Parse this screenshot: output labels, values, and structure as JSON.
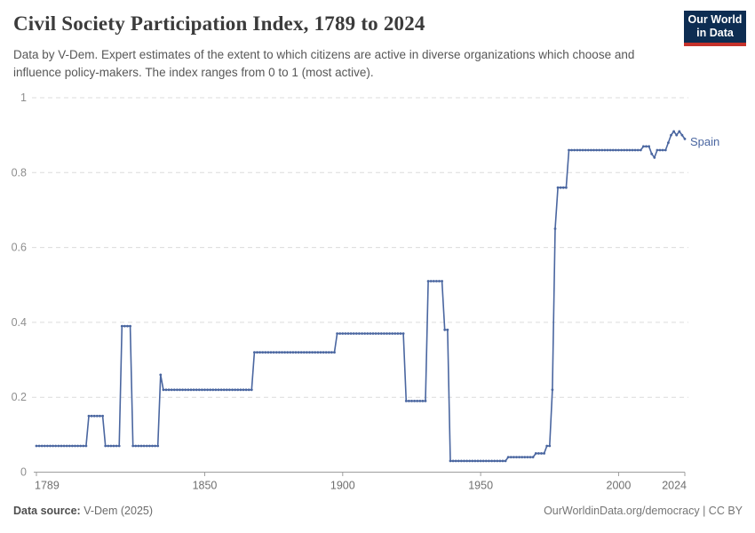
{
  "header": {
    "title": "Civil Society Participation Index, 1789 to 2024",
    "subtitle": "Data by V-Dem. Expert estimates of the extent to which citizens are active in diverse organizations which choose and influence policy-makers. The index ranges from 0 to 1 (most active)."
  },
  "logo": {
    "line1": "Our World",
    "line2": "in Data"
  },
  "footer": {
    "source_label": "Data source:",
    "source_value": " V-Dem (2025)",
    "right_text": "OurWorldinData.org/democracy | CC BY"
  },
  "colors": {
    "line": "#4a66a0",
    "logo_bg": "#0d2d52",
    "logo_stripe": "#c5322b",
    "gridline": "#dcdcdc",
    "axis": "#9e9e9e",
    "y_tick_text": "#8e8e8e",
    "x_tick_text": "#6f6f6f"
  },
  "chart_data": {
    "type": "line",
    "title": "Civil Society Participation Index, 1789 to 2024",
    "xlabel": "",
    "ylabel": "",
    "series_label": "Spain",
    "x_range": [
      1789,
      2024
    ],
    "y_range": [
      0,
      1
    ],
    "x_ticks": [
      1789,
      1850,
      1900,
      1950,
      2000,
      2024
    ],
    "y_ticks": [
      0,
      0.2,
      0.4,
      0.6,
      0.8,
      1
    ],
    "grid": "horizontal-dashed",
    "legend_position": "end-of-line",
    "series": [
      {
        "name": "Spain",
        "segments": [
          {
            "from": 1789,
            "to": 1807,
            "value": 0.07
          },
          {
            "from": 1808,
            "to": 1813,
            "value": 0.15
          },
          {
            "from": 1814,
            "to": 1819,
            "value": 0.07
          },
          {
            "from": 1820,
            "to": 1823,
            "value": 0.39
          },
          {
            "from": 1824,
            "to": 1833,
            "value": 0.07
          },
          {
            "from": 1834,
            "to": 1834,
            "value": 0.26
          },
          {
            "from": 1835,
            "to": 1867,
            "value": 0.22
          },
          {
            "from": 1868,
            "to": 1897,
            "value": 0.32
          },
          {
            "from": 1898,
            "to": 1922,
            "value": 0.37
          },
          {
            "from": 1923,
            "to": 1930,
            "value": 0.19
          },
          {
            "from": 1931,
            "to": 1936,
            "value": 0.51
          },
          {
            "from": 1937,
            "to": 1938,
            "value": 0.38
          },
          {
            "from": 1939,
            "to": 1959,
            "value": 0.03
          },
          {
            "from": 1960,
            "to": 1969,
            "value": 0.04
          },
          {
            "from": 1970,
            "to": 1973,
            "value": 0.05
          },
          {
            "from": 1974,
            "to": 1975,
            "value": 0.07
          },
          {
            "from": 1976,
            "to": 1976,
            "value": 0.22
          },
          {
            "from": 1977,
            "to": 1977,
            "value": 0.65
          },
          {
            "from": 1978,
            "to": 1981,
            "value": 0.76
          },
          {
            "from": 1982,
            "to": 2008,
            "value": 0.86
          },
          {
            "from": 2009,
            "to": 2011,
            "value": 0.87
          },
          {
            "from": 2012,
            "to": 2012,
            "value": 0.85
          },
          {
            "from": 2013,
            "to": 2013,
            "value": 0.84
          },
          {
            "from": 2014,
            "to": 2017,
            "value": 0.86
          },
          {
            "from": 2018,
            "to": 2018,
            "value": 0.88
          },
          {
            "from": 2019,
            "to": 2019,
            "value": 0.9
          },
          {
            "from": 2020,
            "to": 2020,
            "value": 0.91
          },
          {
            "from": 2021,
            "to": 2021,
            "value": 0.9
          },
          {
            "from": 2022,
            "to": 2022,
            "value": 0.91
          },
          {
            "from": 2023,
            "to": 2023,
            "value": 0.9
          },
          {
            "from": 2024,
            "to": 2024,
            "value": 0.89
          }
        ]
      }
    ]
  }
}
